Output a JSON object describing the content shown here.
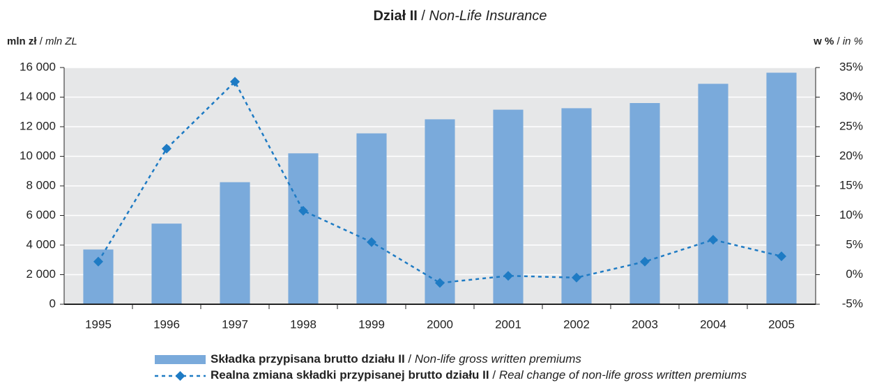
{
  "chart_data": {
    "type": "bar-line",
    "title": [
      "Dział II",
      "/",
      "Non-Life Insurance"
    ],
    "ylabel": [
      "mln zł",
      "/",
      "mln ZL"
    ],
    "y2label": [
      "w %",
      "/",
      "in %"
    ],
    "categories": [
      "1995",
      "1996",
      "1997",
      "1998",
      "1999",
      "2000",
      "2001",
      "2002",
      "2003",
      "2004",
      "2005"
    ],
    "series": [
      {
        "name": [
          "Składka przypisana brutto działu II",
          "/",
          "Non-life gross written premiums"
        ],
        "type": "bar",
        "color": "#7aaadb",
        "values": [
          3700,
          5450,
          8250,
          10200,
          11550,
          12500,
          13150,
          13250,
          13600,
          14900,
          15650
        ]
      },
      {
        "name": [
          "Realna zmiana składki przypisanej brutto działu II",
          "/",
          "Real change of non-life gross written premiums"
        ],
        "type": "line",
        "axis": "y2",
        "color": "#1e7bc4",
        "values": [
          2.2,
          21.3,
          32.6,
          10.8,
          5.5,
          -1.4,
          -0.2,
          -0.5,
          2.2,
          5.9,
          3.1
        ]
      }
    ],
    "ylim": [
      0,
      16000
    ],
    "yticks": [
      0,
      {
        "value": 2000,
        "label": "2 000"
      },
      {
        "value": 4000,
        "label": "4 000"
      },
      {
        "value": 6000,
        "label": "6 000"
      },
      {
        "value": 8000,
        "label": "8 000"
      },
      {
        "value": 10000,
        "label": "10 000"
      },
      {
        "value": 12000,
        "label": "12 000"
      },
      {
        "value": 14000,
        "label": "14 000"
      },
      {
        "value": 16000,
        "label": "16 000"
      }
    ],
    "y2lim": [
      -5,
      35
    ],
    "y2ticks": [
      {
        "value": -5,
        "label": "-5%"
      },
      {
        "value": 0,
        "label": "0%"
      },
      {
        "value": 5,
        "label": "5%"
      },
      {
        "value": 10,
        "label": "10%"
      },
      {
        "value": 15,
        "label": "15%"
      },
      {
        "value": 20,
        "label": "20%"
      },
      {
        "value": 25,
        "label": "25%"
      },
      {
        "value": 30,
        "label": "30%"
      },
      {
        "value": 35,
        "label": "35%"
      }
    ],
    "grid": true
  }
}
